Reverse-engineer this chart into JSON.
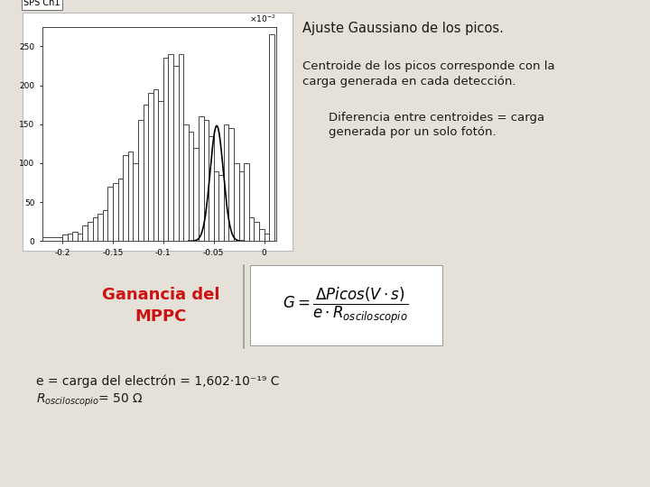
{
  "bg_color": "#e5e0d8",
  "text_color": "#1a1a1a",
  "title1": "Ajuste Gaussiano de los picos.",
  "text2_line1": "Centroide de los picos corresponde con la",
  "text2_line2": "carga generada en cada detección.",
  "text3_line1": "Diferencia entre centroides = carga",
  "text3_line2": "generada por un solo fotón.",
  "ganancia_text": "Ganancia del\nMPPC",
  "ganancia_color": "#cc1111",
  "ganancia_bg": "#f7d8d8",
  "bottom_line1": "e = carga del electrón = 1,602·10⁻¹⁹ C",
  "bottom_line2": "$R_{osciloscopio}$= 50 Ω",
  "plot_label": "SPS Ch1",
  "x_edges": [
    -0.22,
    -0.2,
    -0.195,
    -0.19,
    -0.185,
    -0.18,
    -0.175,
    -0.17,
    -0.165,
    -0.16,
    -0.155,
    -0.15,
    -0.145,
    -0.14,
    -0.135,
    -0.13,
    -0.125,
    -0.12,
    -0.115,
    -0.11,
    -0.105,
    -0.1,
    -0.095,
    -0.09,
    -0.085,
    -0.08,
    -0.075,
    -0.07,
    -0.065,
    -0.06,
    -0.055,
    -0.05,
    -0.045,
    -0.04,
    -0.035,
    -0.03,
    -0.025,
    -0.02,
    -0.015,
    -0.01,
    -0.005,
    0.0,
    0.005,
    0.01
  ],
  "heights": [
    5,
    8,
    10,
    12,
    10,
    20,
    25,
    30,
    35,
    40,
    70,
    75,
    80,
    110,
    115,
    100,
    155,
    175,
    190,
    195,
    180,
    235,
    240,
    225,
    240,
    150,
    140,
    120,
    160,
    155,
    135,
    90,
    85,
    150,
    145,
    100,
    90,
    100,
    30,
    25,
    15,
    10,
    265
  ],
  "gauss_mu": -0.047,
  "gauss_sigma": 0.0065,
  "gauss_amp": 148
}
